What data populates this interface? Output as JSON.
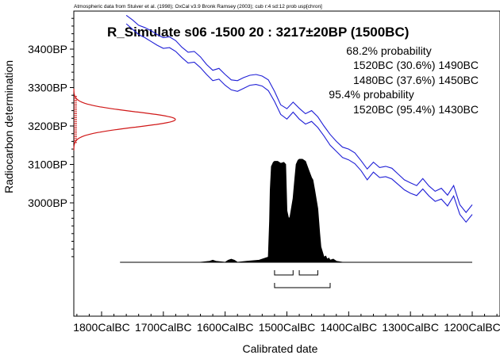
{
  "chart_data": {
    "type": "line",
    "header": "Atmospheric data from Stuiver et al. (1998); OxCal v3.9 Bronk Ramsey (2003); cub r:4 sd:12 prob usp[chron]",
    "title": "R_Simulate s06 -1500 20 : 3217±20BP (1500BC)",
    "xlabel": "Calibrated date",
    "ylabel": "Radiocarbon determination",
    "x_ticks": [
      "1800CalBC",
      "1700CalBC",
      "1600CalBC",
      "1500CalBC",
      "1400CalBC",
      "1300CalBC",
      "1200CalBC"
    ],
    "x_tick_values": [
      -1800,
      -1700,
      -1600,
      -1500,
      -1400,
      -1300,
      -1200
    ],
    "y_ticks": [
      "3400BP",
      "3300BP",
      "3200BP",
      "3100BP",
      "3000BP"
    ],
    "y_tick_values": [
      3400,
      3300,
      3200,
      3100,
      3000
    ],
    "xlim": [
      -1800,
      -1200
    ],
    "ylim": [
      2800,
      3480
    ],
    "colors": {
      "calibration_curve": "#1f1fd6",
      "measurement": "#d01818",
      "posterior": "#000000"
    },
    "annotations": [
      "68.2% probability",
      "1520BC (30.6%) 1490BC",
      "1480BC (37.6%) 1450BC",
      "95.4% probability",
      "1520BC (95.4%) 1430BC"
    ],
    "measurement": {
      "mean_bp": 3217,
      "sd_bp": 20
    },
    "calibration_curve": {
      "x": [
        -1760,
        -1750,
        -1740,
        -1730,
        -1720,
        -1710,
        -1700,
        -1690,
        -1680,
        -1670,
        -1660,
        -1650,
        -1640,
        -1630,
        -1620,
        -1610,
        -1600,
        -1590,
        -1580,
        -1570,
        -1560,
        -1550,
        -1540,
        -1530,
        -1520,
        -1510,
        -1500,
        -1490,
        -1480,
        -1470,
        -1460,
        -1450,
        -1440,
        -1430,
        -1420,
        -1410,
        -1400,
        -1390,
        -1380,
        -1370,
        -1360,
        -1350,
        -1340,
        -1330,
        -1320,
        -1310,
        -1300,
        -1290,
        -1280,
        -1270,
        -1260,
        -1250,
        -1240,
        -1230,
        -1220,
        -1210,
        -1200
      ],
      "upper": [
        3488,
        3476,
        3462,
        3456,
        3448,
        3438,
        3430,
        3432,
        3422,
        3405,
        3392,
        3394,
        3380,
        3360,
        3345,
        3350,
        3334,
        3320,
        3318,
        3326,
        3332,
        3334,
        3330,
        3320,
        3290,
        3255,
        3245,
        3262,
        3246,
        3232,
        3240,
        3224,
        3200,
        3178,
        3160,
        3145,
        3140,
        3130,
        3110,
        3088,
        3106,
        3092,
        3095,
        3090,
        3075,
        3060,
        3052,
        3045,
        3063,
        3044,
        3030,
        3038,
        3020,
        3045,
        2995,
        2975,
        2995
      ],
      "lower": [
        3466,
        3452,
        3438,
        3430,
        3420,
        3410,
        3402,
        3404,
        3394,
        3378,
        3364,
        3366,
        3352,
        3334,
        3318,
        3322,
        3306,
        3294,
        3290,
        3298,
        3306,
        3308,
        3304,
        3292,
        3264,
        3230,
        3218,
        3236,
        3218,
        3205,
        3212,
        3196,
        3174,
        3150,
        3134,
        3118,
        3112,
        3102,
        3084,
        3060,
        3080,
        3066,
        3068,
        3062,
        3048,
        3034,
        3025,
        3019,
        3036,
        3018,
        3004,
        3010,
        2992,
        3018,
        2970,
        2950,
        2970
      ]
    },
    "posterior": {
      "x": [
        -1770,
        -1640,
        -1625,
        -1620,
        -1615,
        -1600,
        -1595,
        -1590,
        -1585,
        -1580,
        -1565,
        -1545,
        -1530,
        -1528,
        -1527,
        -1525,
        -1522,
        -1520,
        -1515,
        -1510,
        -1505,
        -1502,
        -1500,
        -1497,
        -1495,
        -1490,
        -1487,
        -1485,
        -1482,
        -1480,
        -1475,
        -1470,
        -1465,
        -1460,
        -1458,
        -1455,
        -1450,
        -1447,
        -1445,
        -1440,
        -1437,
        -1435,
        -1432,
        -1430,
        -1425,
        -1420,
        -1410,
        -1300,
        -1200
      ],
      "y": [
        0,
        0,
        0.01,
        0.02,
        0.01,
        0,
        0.02,
        0.03,
        0.02,
        0,
        0.01,
        0.02,
        0.05,
        0.4,
        0.7,
        0.93,
        0.97,
        0.98,
        0.98,
        0.96,
        0.97,
        0.95,
        0.5,
        0.42,
        0.44,
        0.62,
        0.82,
        0.95,
        0.99,
        1.0,
        1.0,
        0.98,
        0.9,
        0.82,
        0.8,
        0.7,
        0.52,
        0.28,
        0.15,
        0.05,
        0.06,
        0.03,
        0.04,
        0.02,
        0.03,
        0.01,
        0,
        0,
        0
      ]
    },
    "ranges_68": [
      [
        -1520,
        -1490
      ],
      [
        -1480,
        -1450
      ]
    ],
    "ranges_95": [
      [
        -1520,
        -1430
      ]
    ]
  }
}
